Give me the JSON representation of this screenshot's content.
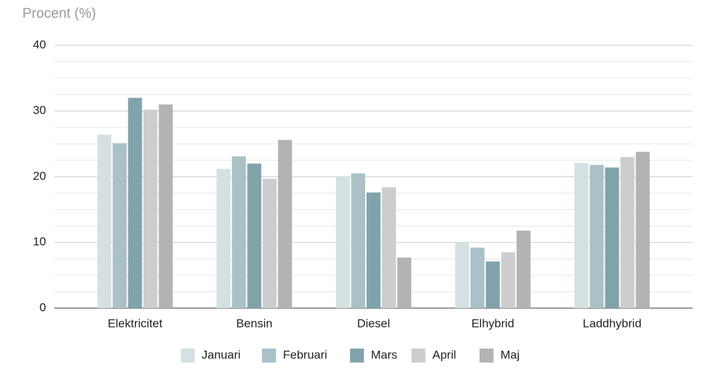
{
  "chart_data": {
    "type": "bar",
    "title": "Procent (%)",
    "categories": [
      "Elektricitet",
      "Bensin",
      "Diesel",
      "Elhybrid",
      "Laddhybrid"
    ],
    "series": [
      {
        "name": "Januari",
        "color": "#d4e1e3",
        "values": [
          26.4,
          21.2,
          20.1,
          10.0,
          22.1
        ]
      },
      {
        "name": "Februari",
        "color": "#a9c1c7",
        "values": [
          25.1,
          23.1,
          20.5,
          9.2,
          21.8
        ]
      },
      {
        "name": "Mars",
        "color": "#80a3ab",
        "values": [
          32.0,
          22.0,
          17.6,
          7.1,
          21.4
        ]
      },
      {
        "name": "April",
        "color": "#cdcdcd",
        "values": [
          30.2,
          19.7,
          18.4,
          8.5,
          23.0
        ]
      },
      {
        "name": "Maj",
        "color": "#b3b3b3",
        "values": [
          31.0,
          25.6,
          7.7,
          11.8,
          23.8
        ]
      }
    ],
    "ylim": [
      0,
      40
    ],
    "yticks": [
      0,
      10,
      20,
      30,
      40
    ],
    "grid": true,
    "minor_grid": true,
    "legend": "bottom"
  }
}
